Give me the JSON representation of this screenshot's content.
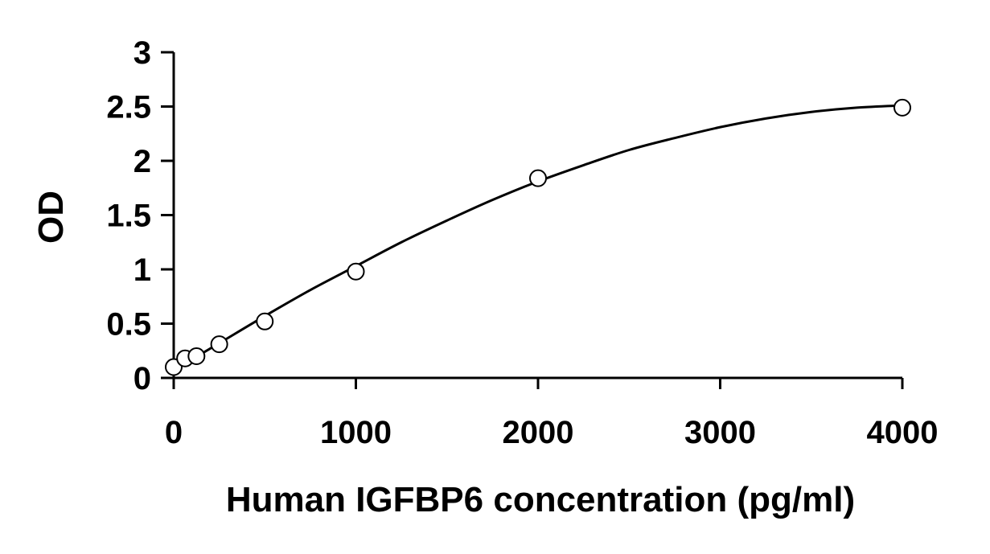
{
  "chart_data": {
    "type": "scatter",
    "title": "",
    "xlabel": "Human IGFBP6 concentration (pg/ml)",
    "ylabel": "OD",
    "xlim": [
      0,
      4000
    ],
    "ylim": [
      0,
      3
    ],
    "x_ticks": [
      0,
      1000,
      2000,
      3000,
      4000
    ],
    "x_tick_labels": [
      "0",
      "1000",
      "2000",
      "3000",
      "4000"
    ],
    "y_ticks": [
      0,
      0.5,
      1,
      1.5,
      2,
      2.5,
      3
    ],
    "y_tick_labels": [
      "0",
      "0.5",
      "1",
      "1.5",
      "2",
      "2.5",
      "3"
    ],
    "grid": false,
    "series": [
      {
        "marker": "open-circle",
        "x": [
          0,
          62.5,
          125,
          250,
          500,
          1000,
          2000,
          4000
        ],
        "y": [
          0.1,
          0.18,
          0.2,
          0.31,
          0.52,
          0.98,
          1.84,
          2.49
        ]
      }
    ],
    "fit_curve": {
      "x": [
        0,
        250,
        500,
        750,
        1000,
        1250,
        1500,
        1750,
        2000,
        2250,
        2500,
        2750,
        3000,
        3250,
        3500,
        3750,
        4000
      ],
      "y": [
        0.07,
        0.32,
        0.57,
        0.81,
        1.03,
        1.25,
        1.45,
        1.64,
        1.81,
        1.96,
        2.1,
        2.21,
        2.31,
        2.39,
        2.45,
        2.49,
        2.51
      ]
    }
  }
}
